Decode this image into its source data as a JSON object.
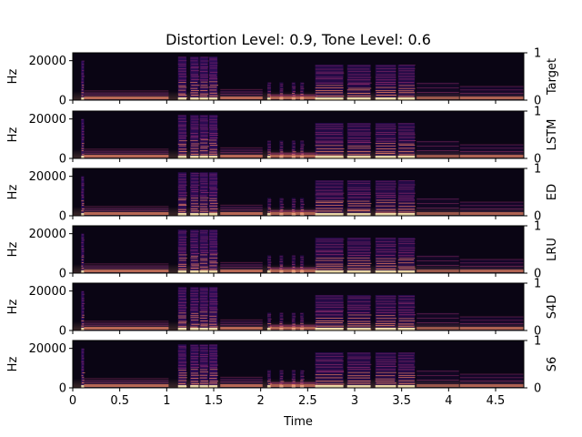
{
  "chart_data": {
    "type": "heatmap",
    "title": "Distortion Level: 0.9, Tone Level: 0.6",
    "xlabel": "Time",
    "xlim": [
      0,
      4.8
    ],
    "xticks": [
      0,
      0.5,
      1,
      1.5,
      2,
      2.5,
      3,
      3.5,
      4,
      4.5
    ],
    "xtick_labels": [
      "0",
      "0.5",
      "1",
      "1.5",
      "2",
      "2.5",
      "3",
      "3.5",
      "4",
      "4.5"
    ],
    "ylabel": "Hz",
    "ylim": [
      0,
      24000
    ],
    "yticks": [
      0,
      20000
    ],
    "ytick_labels": [
      "0",
      "20000"
    ],
    "right_axis_ylim": [
      0,
      1
    ],
    "right_axis_ticks": [
      0,
      1
    ],
    "right_axis_tick_labels": [
      "0",
      "1"
    ],
    "colormap": "magma",
    "colors": {
      "background": "#0a0514",
      "low": "#3b0f70",
      "mid": "#b63679",
      "high": "#fb8861",
      "peak": "#fcfdbf"
    },
    "panels": [
      {
        "label": "Target"
      },
      {
        "label": "LSTM"
      },
      {
        "label": "ED"
      },
      {
        "label": "LRU"
      },
      {
        "label": "S4D"
      },
      {
        "label": "S6"
      }
    ],
    "events": [
      {
        "type": "click",
        "t": 0.09,
        "dur": 0.03,
        "fmax": 20000,
        "level": 0.8
      },
      {
        "type": "tail",
        "t": 0.12,
        "dur": 0.9,
        "fmax": 4000,
        "level": 0.45
      },
      {
        "type": "burst",
        "t": 1.12,
        "dur": 0.09,
        "fmax": 22000,
        "level": 0.75
      },
      {
        "type": "burst",
        "t": 1.25,
        "dur": 0.09,
        "fmax": 22000,
        "level": 0.75
      },
      {
        "type": "burst",
        "t": 1.35,
        "dur": 0.09,
        "fmax": 22000,
        "level": 0.75
      },
      {
        "type": "burst",
        "t": 1.45,
        "dur": 0.09,
        "fmax": 22000,
        "level": 0.8
      },
      {
        "type": "tail",
        "t": 1.57,
        "dur": 0.45,
        "fmax": 5000,
        "level": 0.45
      },
      {
        "type": "spike",
        "t": 2.07,
        "dur": 0.04,
        "fmax": 9000,
        "level": 0.55
      },
      {
        "type": "spike",
        "t": 2.2,
        "dur": 0.04,
        "fmax": 9000,
        "level": 0.55
      },
      {
        "type": "spike",
        "t": 2.33,
        "dur": 0.04,
        "fmax": 9000,
        "level": 0.55
      },
      {
        "type": "spike",
        "t": 2.42,
        "dur": 0.04,
        "fmax": 9000,
        "level": 0.55
      },
      {
        "type": "tail",
        "t": 2.1,
        "dur": 0.5,
        "fmax": 1500,
        "level": 0.4
      },
      {
        "type": "block",
        "t": 2.58,
        "dur": 0.3,
        "fmax": 18000,
        "level": 0.6
      },
      {
        "type": "block",
        "t": 2.92,
        "dur": 0.25,
        "fmax": 18000,
        "level": 0.6
      },
      {
        "type": "block",
        "t": 3.22,
        "dur": 0.22,
        "fmax": 18000,
        "level": 0.6
      },
      {
        "type": "block",
        "t": 3.46,
        "dur": 0.18,
        "fmax": 18000,
        "level": 0.6
      },
      {
        "type": "tail",
        "t": 3.66,
        "dur": 0.45,
        "fmax": 9000,
        "level": 0.3
      },
      {
        "type": "tail",
        "t": 4.12,
        "dur": 0.68,
        "fmax": 7000,
        "level": 0.4
      }
    ]
  }
}
